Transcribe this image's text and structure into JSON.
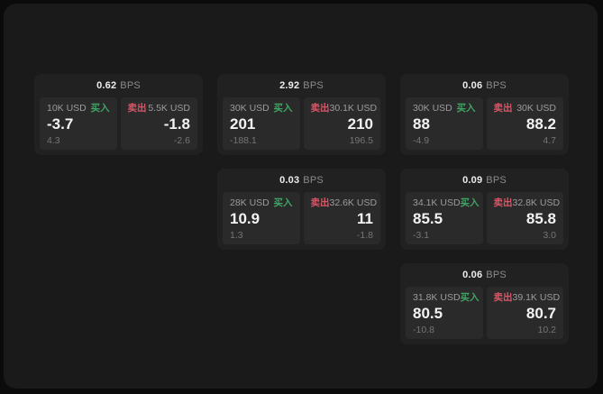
{
  "board": {
    "bps_unit": "BPS",
    "buy_label": "买入",
    "sell_label": "卖出",
    "colors": {
      "buy": "#3fa564",
      "sell": "#d95667",
      "surface": "#1a1a1a",
      "card": "#212121",
      "panel": "#2a2a2a"
    },
    "cards": [
      {
        "row": 1,
        "col": 1,
        "bps": "0.62",
        "buy": {
          "amount": "10K USD",
          "price": "-3.7",
          "delta": "4.3"
        },
        "sell": {
          "amount": "5.5K USD",
          "price": "-1.8",
          "delta": "-2.6"
        }
      },
      {
        "row": 1,
        "col": 2,
        "bps": "2.92",
        "buy": {
          "amount": "30K USD",
          "price": "201",
          "delta": "-188.1"
        },
        "sell": {
          "amount": "30.1K USD",
          "price": "210",
          "delta": "196.5"
        }
      },
      {
        "row": 1,
        "col": 3,
        "bps": "0.06",
        "buy": {
          "amount": "30K USD",
          "price": "88",
          "delta": "-4.9"
        },
        "sell": {
          "amount": "30K USD",
          "price": "88.2",
          "delta": "4.7"
        }
      },
      {
        "row": 2,
        "col": 2,
        "bps": "0.03",
        "buy": {
          "amount": "28K USD",
          "price": "10.9",
          "delta": "1.3"
        },
        "sell": {
          "amount": "32.6K USD",
          "price": "11",
          "delta": "-1.8"
        }
      },
      {
        "row": 2,
        "col": 3,
        "bps": "0.09",
        "buy": {
          "amount": "34.1K USD",
          "price": "85.5",
          "delta": "-3.1"
        },
        "sell": {
          "amount": "32.8K USD",
          "price": "85.8",
          "delta": "3.0"
        }
      },
      {
        "row": 3,
        "col": 3,
        "bps": "0.06",
        "buy": {
          "amount": "31.8K USD",
          "price": "80.5",
          "delta": "-10.8"
        },
        "sell": {
          "amount": "39.1K USD",
          "price": "80.7",
          "delta": "10.2"
        }
      }
    ]
  }
}
